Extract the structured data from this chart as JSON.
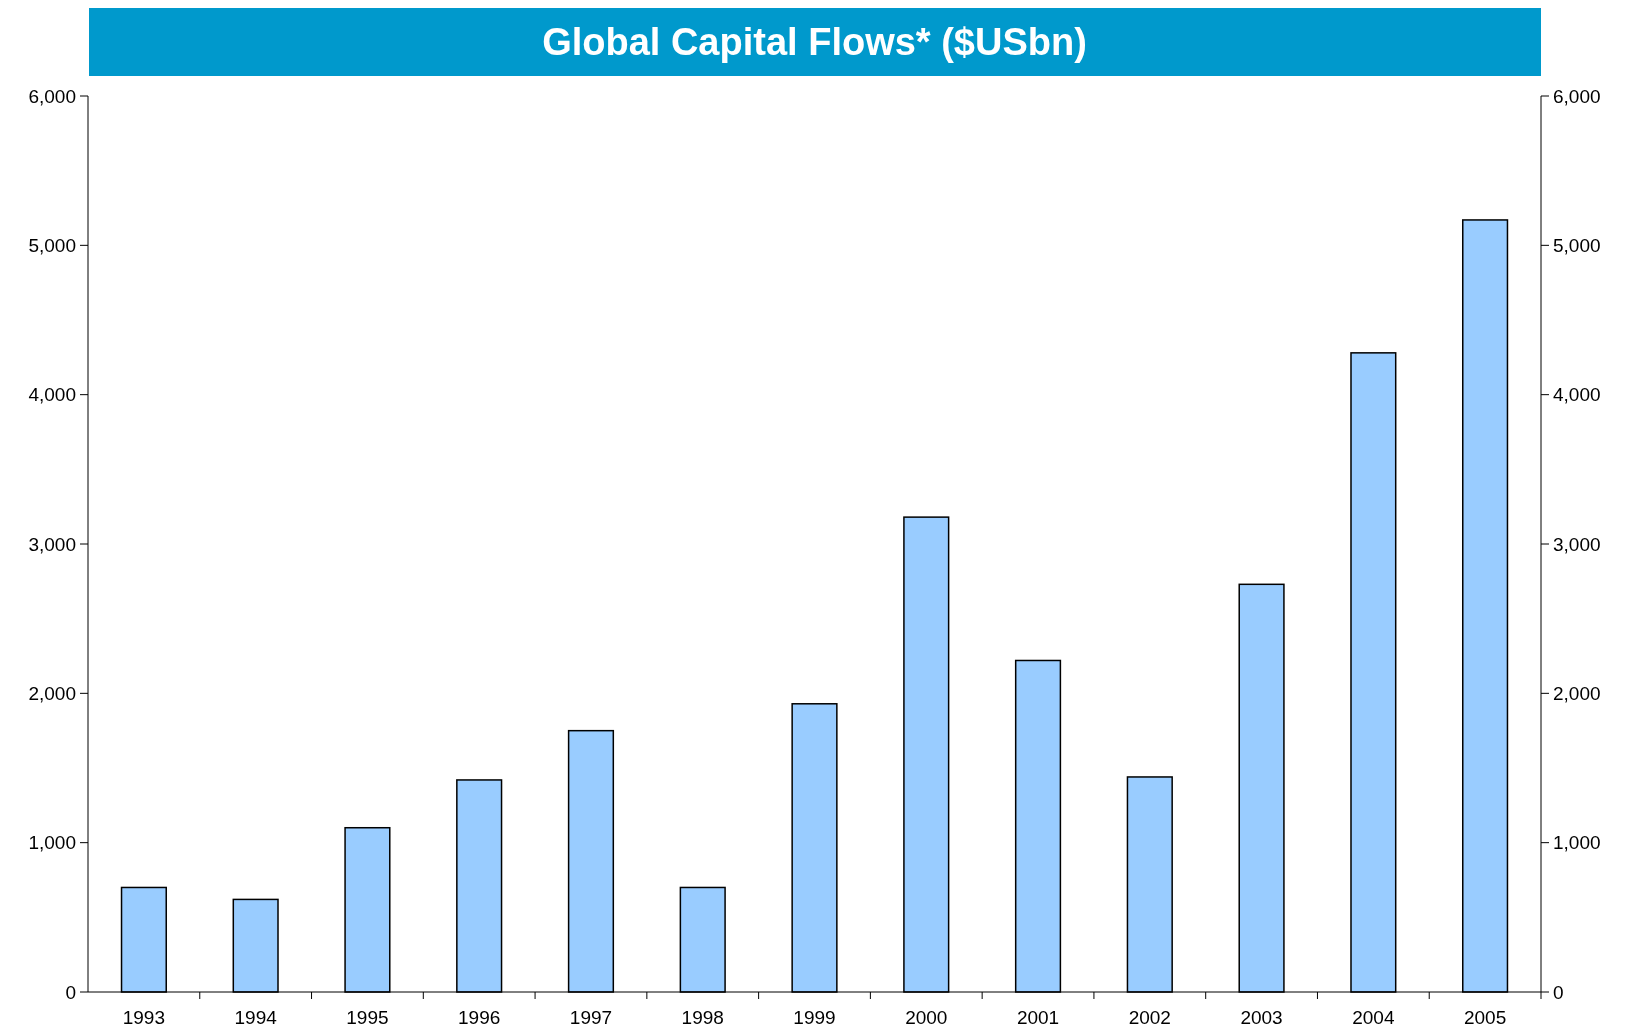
{
  "chart_data": {
    "type": "bar",
    "title": "Global Capital Flows* ($USbn)",
    "categories": [
      "1993",
      "1994",
      "1995",
      "1996",
      "1997",
      "1998",
      "1999",
      "2000",
      "2001",
      "2002",
      "2003",
      "2004",
      "2005"
    ],
    "values": [
      700,
      620,
      1100,
      1420,
      1750,
      700,
      1930,
      3180,
      2220,
      1440,
      2730,
      4280,
      5170
    ],
    "color": "#99ccff",
    "ylim": [
      0,
      6000
    ],
    "yticks": [
      0,
      {
        "value": 1000,
        "label": "1,000"
      },
      {
        "value": 2000,
        "label": "2,000"
      },
      {
        "value": 3000,
        "label": "3,000"
      },
      {
        "value": 4000,
        "label": "4,000"
      },
      {
        "value": 5000,
        "label": "5,000"
      },
      {
        "value": 6000,
        "label": "6,000"
      }
    ],
    "y2lim": [
      0,
      6000
    ],
    "y2ticks": [
      0,
      {
        "value": 1000,
        "label": "1,000"
      },
      {
        "value": 2000,
        "label": "2,000"
      },
      {
        "value": 3000,
        "label": "3,000"
      },
      {
        "value": 4000,
        "label": "4,000"
      },
      {
        "value": 5000,
        "label": "5,000"
      },
      {
        "value": 6000,
        "label": "6,000"
      }
    ],
    "grid": false
  }
}
